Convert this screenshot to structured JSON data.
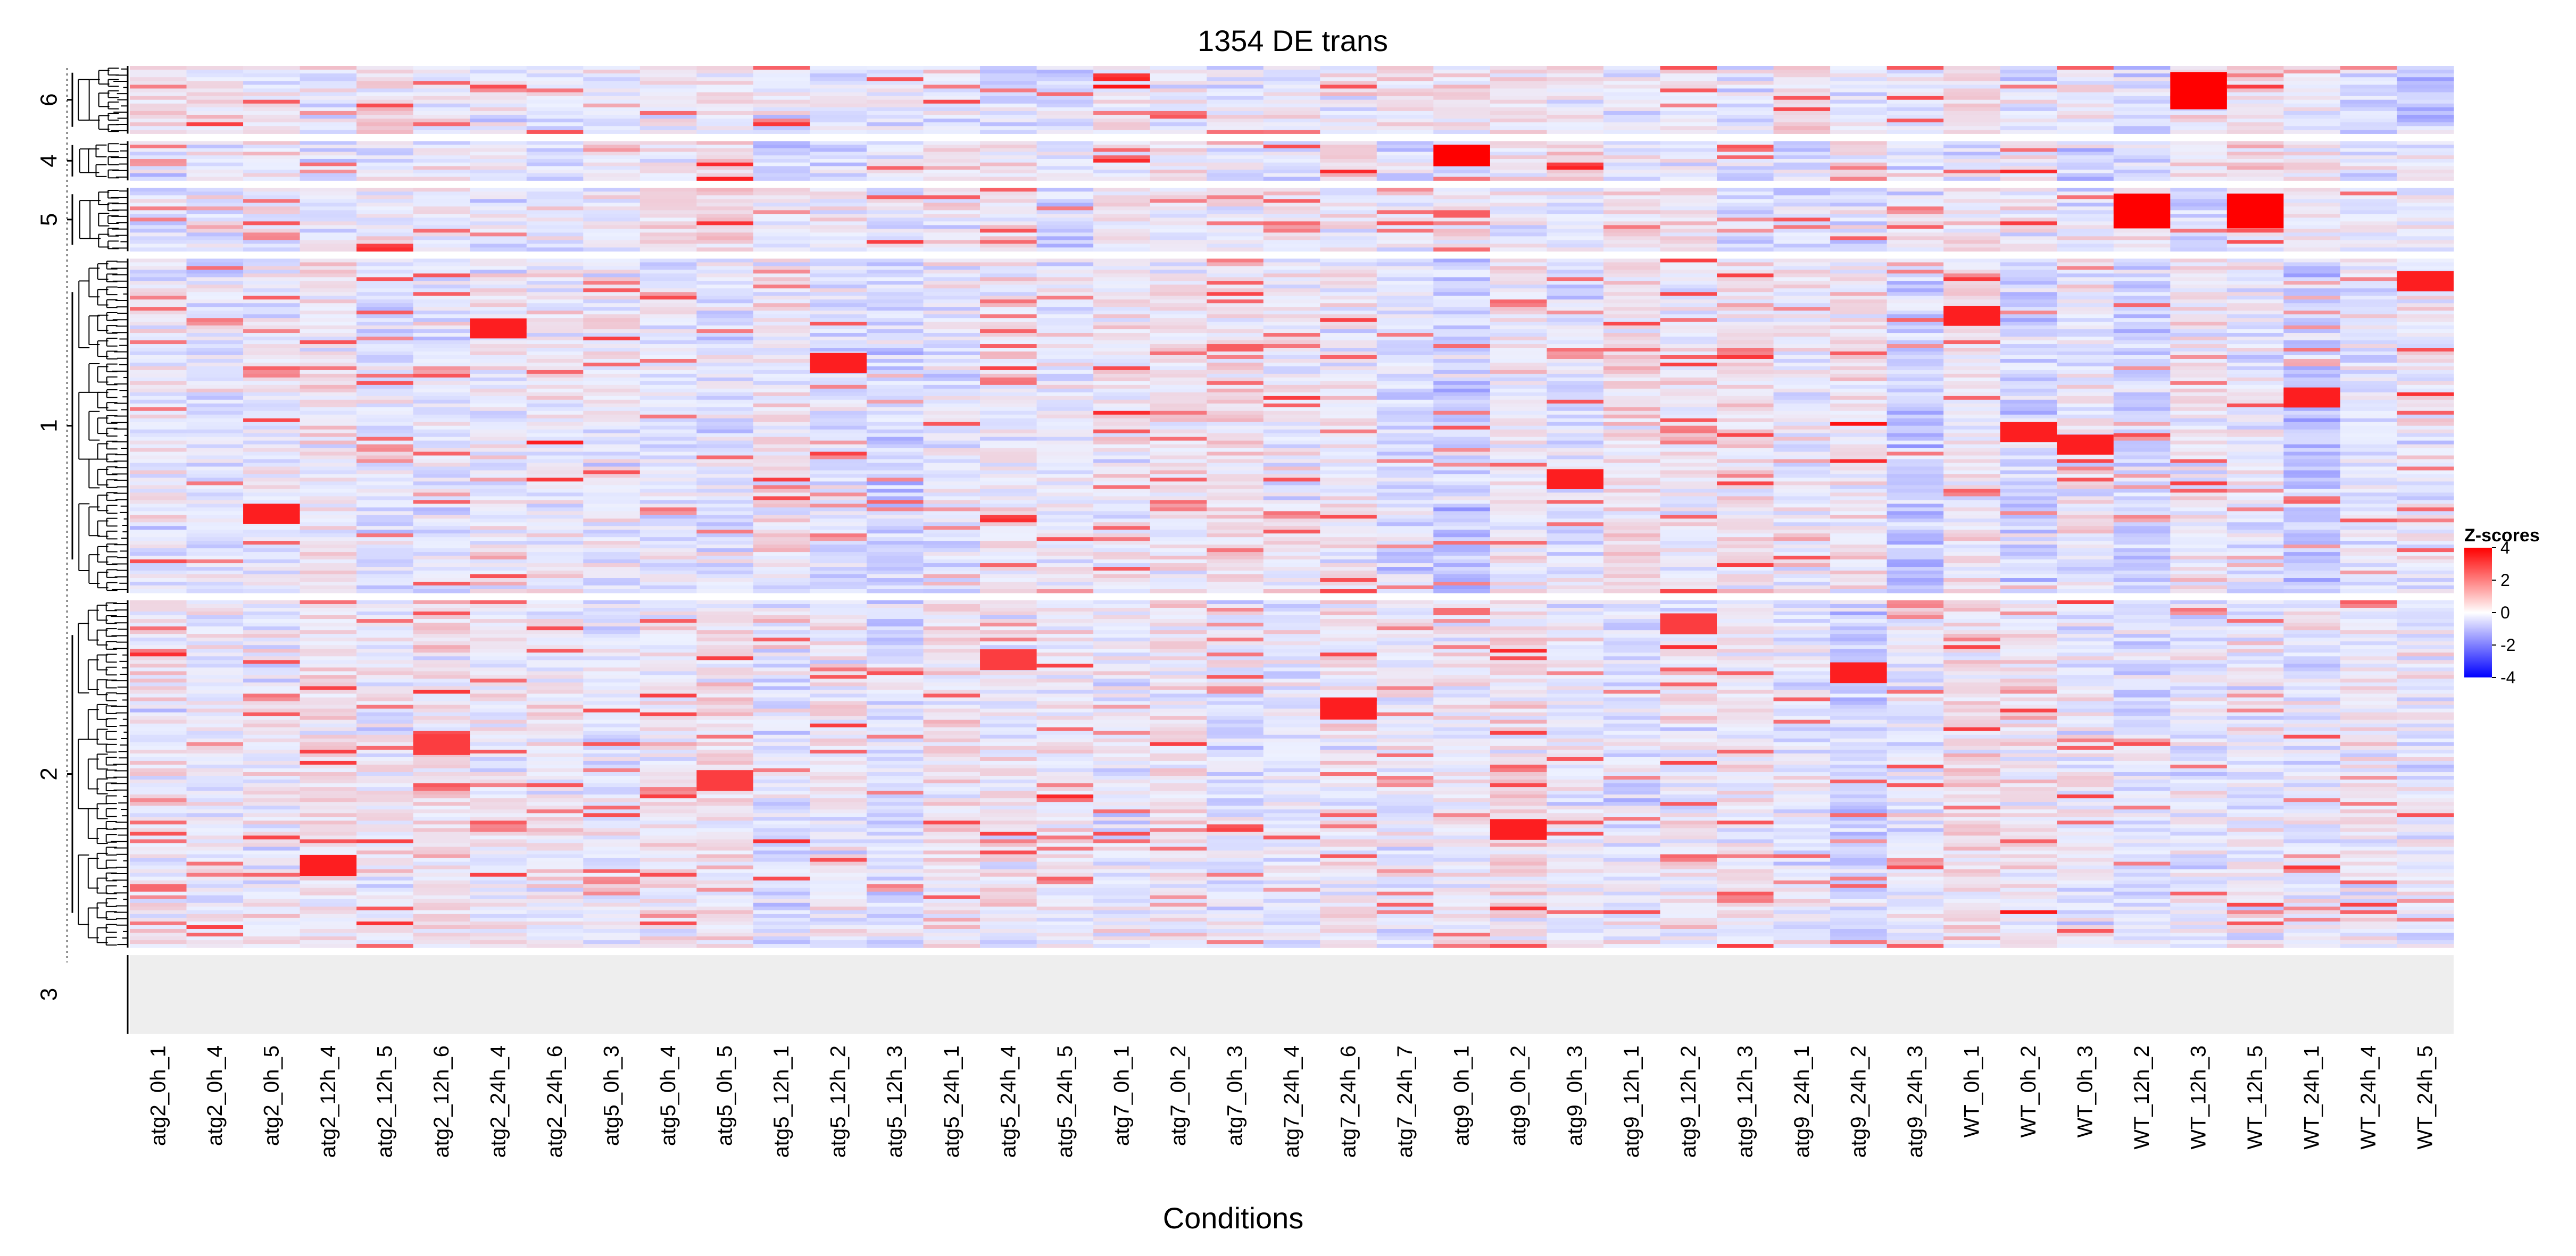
{
  "chart_data": {
    "type": "heatmap",
    "title": "1354 DE trans",
    "xlabel": "Conditions",
    "ylabel": "",
    "columns": [
      "atg2_0h_1",
      "atg2_0h_4",
      "atg2_0h_5",
      "atg2_12h_4",
      "atg2_12h_5",
      "atg2_12h_6",
      "atg2_24h_4",
      "atg2_24h_6",
      "atg5_0h_3",
      "atg5_0h_4",
      "atg5_0h_5",
      "atg5_12h_1",
      "atg5_12h_2",
      "atg5_12h_3",
      "atg5_24h_1",
      "atg5_24h_4",
      "atg5_24h_5",
      "atg7_0h_1",
      "atg7_0h_2",
      "atg7_0h_3",
      "atg7_24h_4",
      "atg7_24h_6",
      "atg7_24h_7",
      "atg9_0h_1",
      "atg9_0h_2",
      "atg9_0h_3",
      "atg9_12h_1",
      "atg9_12h_2",
      "atg9_12h_3",
      "atg9_24h_1",
      "atg9_24h_2",
      "atg9_24h_3",
      "WT_0h_1",
      "WT_0h_2",
      "WT_0h_3",
      "WT_12h_2",
      "WT_12h_3",
      "WT_12h_5",
      "WT_24h_1",
      "WT_24h_4",
      "WT_24h_5"
    ],
    "row_clusters": [
      {
        "label": "6",
        "row_fraction": 0.031
      },
      {
        "label": "4",
        "row_fraction": 0.018
      },
      {
        "label": "5",
        "row_fraction": 0.029
      },
      {
        "label": "1",
        "row_fraction": 0.153
      },
      {
        "label": "2",
        "row_fraction": 0.159
      },
      {
        "label": "3",
        "row_fraction": 0.036
      }
    ],
    "legend": {
      "title": "Z-scores",
      "ticks": [
        4,
        2,
        0,
        -2,
        -4
      ],
      "color_range": [
        -4,
        4
      ],
      "colors": {
        "low": "#0000ff",
        "mid": "#ffffff",
        "high": "#ff0000"
      },
      "placement": "right"
    },
    "highlights": [
      {
        "cluster": "6",
        "column": "WT_12h_3",
        "z": 4
      },
      {
        "cluster": "4",
        "column": "atg9_0h_1",
        "z": 4
      },
      {
        "cluster": "5",
        "column": "WT_12h_2",
        "z": 4
      },
      {
        "cluster": "5",
        "column": "WT_12h_5",
        "z": 4
      },
      {
        "cluster": "1",
        "column": "WT_0h_1",
        "z": 3.5
      },
      {
        "cluster": "1",
        "column": "WT_0h_2",
        "z": 3.5
      },
      {
        "cluster": "1",
        "column": "WT_24h_5",
        "z": 3.5
      },
      {
        "cluster": "1",
        "column": "WT_24h_1",
        "z": 3.5
      },
      {
        "cluster": "1",
        "column": "atg2_0h_5",
        "z": 3.5
      },
      {
        "cluster": "1",
        "column": "atg5_12h_2",
        "z": 3.5
      },
      {
        "cluster": "1",
        "column": "atg9_0h_3",
        "z": 3.5
      },
      {
        "cluster": "1",
        "column": "atg2_24h_4",
        "z": 3.5
      },
      {
        "cluster": "1",
        "column": "WT_0h_3",
        "z": 3.5
      },
      {
        "cluster": "2",
        "column": "atg5_24h_4",
        "z": 3
      },
      {
        "cluster": "2",
        "column": "atg5_0h_5",
        "z": 3
      },
      {
        "cluster": "2",
        "column": "atg9_12h_2",
        "z": 3
      },
      {
        "cluster": "2",
        "column": "atg2_12h_6",
        "z": 3
      },
      {
        "cluster": "2",
        "column": "atg2_12h_4",
        "z": 3.5
      },
      {
        "cluster": "2",
        "column": "atg7_24h_6",
        "z": 3.5
      },
      {
        "cluster": "2",
        "column": "atg9_0h_2",
        "z": 3.5
      },
      {
        "cluster": "2",
        "column": "atg9_24h_2",
        "z": 3.5
      }
    ]
  }
}
